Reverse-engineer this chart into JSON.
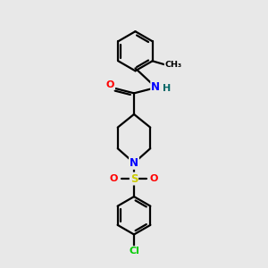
{
  "bg_color": "#e8e8e8",
  "bond_color": "#000000",
  "atom_colors": {
    "N": "#0000ff",
    "O": "#ff0000",
    "S": "#cccc00",
    "Cl": "#00cc00",
    "H": "#006666",
    "C": "#000000"
  },
  "figsize": [
    3.0,
    3.0
  ],
  "dpi": 100
}
